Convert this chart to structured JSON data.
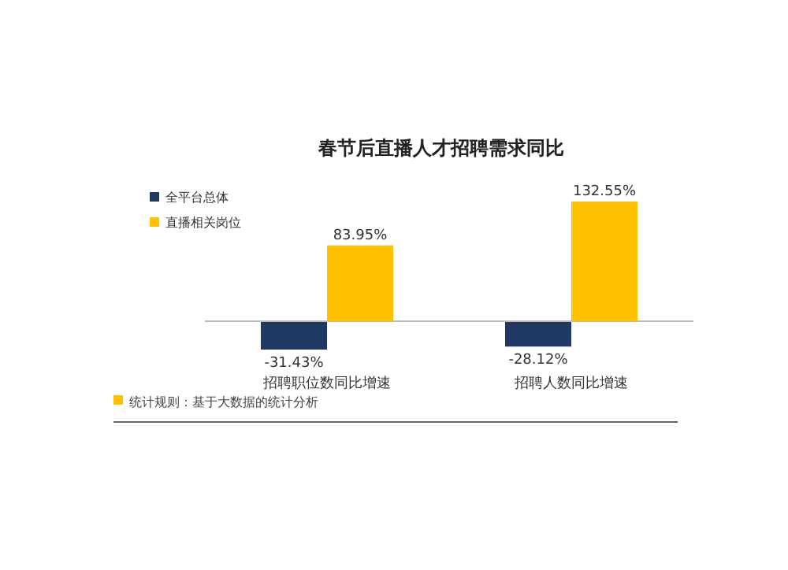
{
  "chart_data": {
    "type": "bar",
    "title": "春节后直播人才招聘需求同比",
    "categories": [
      "招聘职位数同比增速",
      "招聘人数同比增速"
    ],
    "series": [
      {
        "name": "全平台总体",
        "color": "#1f3864",
        "values": [
          -31.43,
          -28.12
        ],
        "value_labels": [
          "-31.43%",
          "-28.12%"
        ]
      },
      {
        "name": "直播相关岗位",
        "color": "#ffc000",
        "values": [
          83.95,
          132.55
        ],
        "value_labels": [
          "83.95%",
          "132.55%"
        ]
      }
    ],
    "legend": "top left",
    "annotations": [
      "统计规则：基于大数据的统计分析"
    ]
  }
}
